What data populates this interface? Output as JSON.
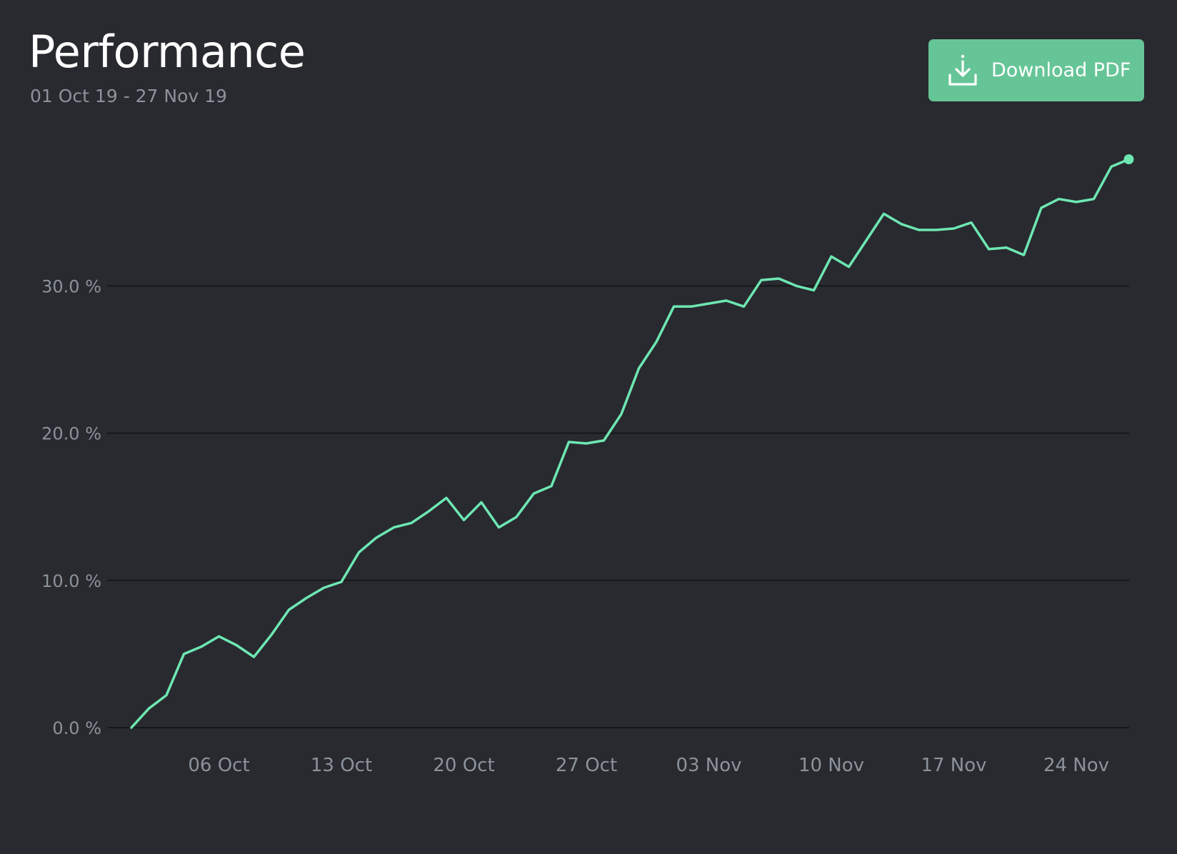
{
  "header": {
    "title": "Performance",
    "date_range": "01 Oct 19 - 27 Nov 19"
  },
  "actions": {
    "download_label": "Download PDF",
    "download_icon": "download-icon"
  },
  "colors": {
    "background": "#282a2f",
    "line": "#6ee7b3",
    "button": "#66c597",
    "grid": "#16171a",
    "muted_text": "#8c929c"
  },
  "chart_data": {
    "type": "line",
    "title": "Performance",
    "xlabel": "",
    "ylabel": "",
    "ylim": [
      0,
      37
    ],
    "x_range": [
      "2019-10-01",
      "2019-11-27"
    ],
    "y_ticks": [
      {
        "value": 0,
        "label": "0.0 %"
      },
      {
        "value": 10,
        "label": "10.0 %"
      },
      {
        "value": 20,
        "label": "20.0 %"
      },
      {
        "value": 30,
        "label": "30.0 %"
      }
    ],
    "x_ticks": [
      {
        "date": "2019-10-06",
        "label": "06 Oct"
      },
      {
        "date": "2019-10-13",
        "label": "13 Oct"
      },
      {
        "date": "2019-10-20",
        "label": "20 Oct"
      },
      {
        "date": "2019-10-27",
        "label": "27 Oct"
      },
      {
        "date": "2019-11-03",
        "label": "03 Nov"
      },
      {
        "date": "2019-11-10",
        "label": "10 Nov"
      },
      {
        "date": "2019-11-17",
        "label": "17 Nov"
      },
      {
        "date": "2019-11-24",
        "label": "24 Nov"
      }
    ],
    "grid": true,
    "legend": "none",
    "end_marker": true,
    "series": [
      {
        "x": [
          "2019-10-01",
          "2019-10-02",
          "2019-10-03",
          "2019-10-04",
          "2019-10-05",
          "2019-10-06",
          "2019-10-07",
          "2019-10-08",
          "2019-10-09",
          "2019-10-10",
          "2019-10-11",
          "2019-10-12",
          "2019-10-13",
          "2019-10-14",
          "2019-10-15",
          "2019-10-16",
          "2019-10-17",
          "2019-10-18",
          "2019-10-19",
          "2019-10-20",
          "2019-10-21",
          "2019-10-22",
          "2019-10-23",
          "2019-10-24",
          "2019-10-25",
          "2019-10-26",
          "2019-10-27",
          "2019-10-28",
          "2019-10-29",
          "2019-10-30",
          "2019-10-31",
          "2019-11-01",
          "2019-11-02",
          "2019-11-03",
          "2019-11-04",
          "2019-11-05",
          "2019-11-06",
          "2019-11-07",
          "2019-11-08",
          "2019-11-09",
          "2019-11-10",
          "2019-11-11",
          "2019-11-12",
          "2019-11-13",
          "2019-11-14",
          "2019-11-15",
          "2019-11-16",
          "2019-11-17",
          "2019-11-18",
          "2019-11-19",
          "2019-11-20",
          "2019-11-21",
          "2019-11-22",
          "2019-11-23",
          "2019-11-24",
          "2019-11-25",
          "2019-11-26",
          "2019-11-27"
        ],
        "values": [
          0.0,
          1.3,
          2.2,
          5.0,
          5.5,
          6.2,
          5.6,
          4.8,
          6.3,
          8.0,
          8.8,
          9.5,
          9.9,
          11.9,
          12.9,
          13.6,
          13.9,
          14.7,
          15.6,
          14.1,
          15.3,
          13.6,
          14.3,
          15.9,
          16.4,
          19.4,
          19.3,
          19.5,
          21.3,
          24.4,
          26.2,
          28.6,
          28.6,
          28.8,
          29.0,
          28.6,
          30.4,
          30.5,
          30.0,
          29.7,
          32.0,
          31.3,
          33.1,
          34.9,
          34.2,
          33.8,
          33.8,
          33.9,
          34.3,
          32.5,
          32.6,
          32.1,
          35.3,
          35.9,
          35.7,
          35.9,
          38.1,
          38.6
        ]
      }
    ]
  }
}
